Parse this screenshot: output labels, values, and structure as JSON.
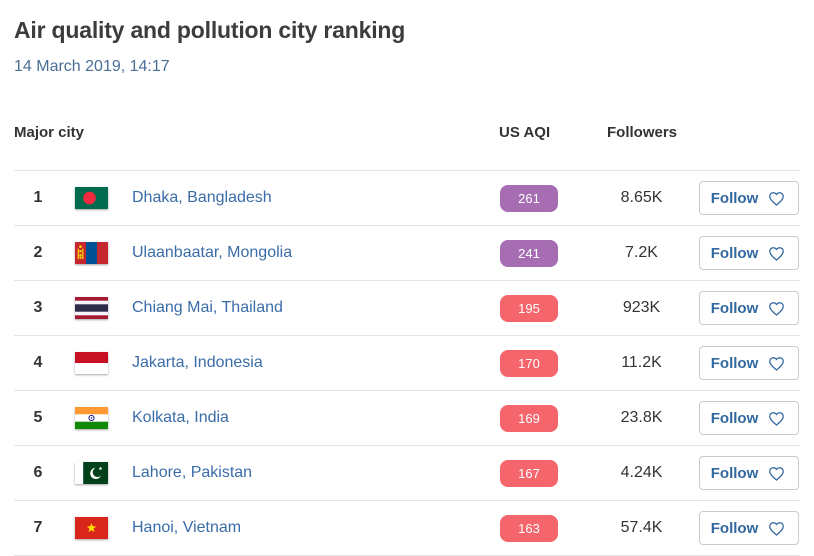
{
  "header": {
    "title": "Air quality and pollution city ranking",
    "datetime": "14 March 2019, 14:17"
  },
  "colors": {
    "aqi_purple": "#a66db3",
    "aqi_red": "#f4656c",
    "link_blue": "#3a6ca8",
    "follow_blue": "#31689f"
  },
  "table": {
    "columns": [
      "Major city",
      "US AQI",
      "Followers"
    ],
    "follow_button_label": "Follow",
    "rows": [
      {
        "rank": "1",
        "city": "Dhaka, Bangladesh",
        "flag": "bangladesh",
        "aqi": "261",
        "aqi_level": "purple",
        "followers": "8.65K"
      },
      {
        "rank": "2",
        "city": "Ulaanbaatar, Mongolia",
        "flag": "mongolia",
        "aqi": "241",
        "aqi_level": "purple",
        "followers": "7.2K"
      },
      {
        "rank": "3",
        "city": "Chiang Mai, Thailand",
        "flag": "thailand",
        "aqi": "195",
        "aqi_level": "red",
        "followers": "923K"
      },
      {
        "rank": "4",
        "city": "Jakarta, Indonesia",
        "flag": "indonesia",
        "aqi": "170",
        "aqi_level": "red",
        "followers": "11.2K"
      },
      {
        "rank": "5",
        "city": "Kolkata, India",
        "flag": "india",
        "aqi": "169",
        "aqi_level": "red",
        "followers": "23.8K"
      },
      {
        "rank": "6",
        "city": "Lahore, Pakistan",
        "flag": "pakistan",
        "aqi": "167",
        "aqi_level": "red",
        "followers": "4.24K"
      },
      {
        "rank": "7",
        "city": "Hanoi, Vietnam",
        "flag": "vietnam",
        "aqi": "163",
        "aqi_level": "red",
        "followers": "57.4K"
      }
    ]
  }
}
